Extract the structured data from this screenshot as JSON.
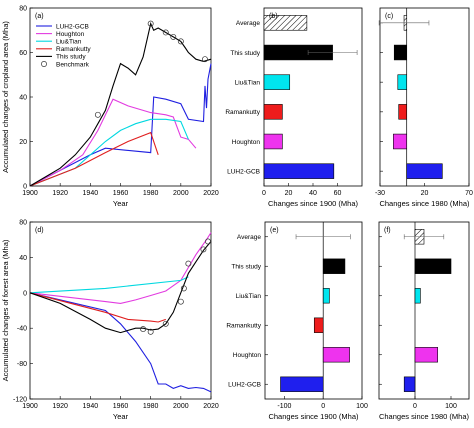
{
  "chart_data": [
    {
      "id": "a",
      "panel_label": "(a)",
      "type": "line",
      "xlabel": "Year",
      "ylabel": "Accumulated changes of cropland area (Mha)",
      "xlim": [
        1900,
        2020
      ],
      "ylim": [
        0,
        80
      ],
      "xticks": [
        1900,
        1920,
        1940,
        1960,
        1980,
        2000,
        2020
      ],
      "yticks": [
        0,
        20,
        40,
        60,
        80
      ],
      "legend_position": "top-left",
      "series": [
        {
          "name": "LUH2-GCB",
          "color": "#1f1fe0",
          "points": [
            [
              1900,
              0
            ],
            [
              1940,
              14
            ],
            [
              1950,
              17
            ],
            [
              1980,
              15
            ],
            [
              1982,
              40
            ],
            [
              1990,
              39
            ],
            [
              2000,
              37
            ],
            [
              2005,
              30
            ],
            [
              2015,
              29
            ],
            [
              2016,
              45
            ],
            [
              2017,
              35
            ],
            [
              2018,
              48
            ],
            [
              2020,
              55
            ]
          ]
        },
        {
          "name": "Houghton",
          "color": "#e23be0",
          "points": [
            [
              1900,
              0
            ],
            [
              1920,
              7
            ],
            [
              1935,
              14
            ],
            [
              1945,
              25
            ],
            [
              1955,
              39
            ],
            [
              1965,
              36
            ],
            [
              1980,
              33
            ],
            [
              1990,
              32
            ],
            [
              1995,
              31
            ],
            [
              2000,
              22
            ],
            [
              2005,
              21
            ],
            [
              2010,
              17
            ]
          ]
        },
        {
          "name": "Liu&Tian",
          "color": "#00d8e0",
          "points": [
            [
              1900,
              0
            ],
            [
              1930,
              8
            ],
            [
              1950,
              20
            ],
            [
              1960,
              25
            ],
            [
              1970,
              28
            ],
            [
              1980,
              30
            ],
            [
              1990,
              30
            ],
            [
              2000,
              29
            ],
            [
              2005,
              21
            ]
          ]
        },
        {
          "name": "Ramankutty",
          "color": "#e01f1f",
          "points": [
            [
              1900,
              0
            ],
            [
              1930,
              8
            ],
            [
              1950,
              15
            ],
            [
              1965,
              20
            ],
            [
              1980,
              24
            ],
            [
              1985,
              14
            ]
          ]
        },
        {
          "name": "This study",
          "color": "#000000",
          "points": [
            [
              1900,
              0
            ],
            [
              1910,
              4
            ],
            [
              1920,
              8
            ],
            [
              1930,
              14
            ],
            [
              1940,
              22
            ],
            [
              1945,
              28
            ],
            [
              1950,
              34
            ],
            [
              1955,
              45
            ],
            [
              1960,
              55
            ],
            [
              1965,
              53
            ],
            [
              1970,
              50
            ],
            [
              1975,
              58
            ],
            [
              1980,
              73
            ],
            [
              1982,
              70
            ],
            [
              1985,
              71
            ],
            [
              1990,
              69
            ],
            [
              1995,
              67
            ],
            [
              2000,
              65
            ],
            [
              2003,
              62
            ],
            [
              2005,
              60
            ],
            [
              2010,
              57
            ],
            [
              2015,
              56
            ],
            [
              2020,
              57
            ]
          ]
        }
      ],
      "benchmark": {
        "name": "Benchmark",
        "points": [
          [
            1945,
            32
          ],
          [
            1980,
            73
          ],
          [
            1990,
            69
          ],
          [
            1995,
            67
          ],
          [
            2000,
            65
          ],
          [
            2016,
            57
          ]
        ]
      }
    },
    {
      "id": "b",
      "panel_label": "(b)",
      "type": "bar",
      "xlabel": "Changes since 1900 (Mha)",
      "xlim": [
        0,
        80
      ],
      "xticks": [
        0,
        20,
        40,
        60
      ],
      "categories": [
        "Average",
        "This study",
        "Liu&Tian",
        "Ramankutty",
        "Houghton",
        "LUH2-GCB"
      ],
      "values": [
        35,
        56,
        21,
        15,
        15,
        57
      ],
      "error": [
        0,
        20,
        0,
        0,
        0,
        0
      ],
      "colors": [
        "hatch",
        "#000000",
        "#00e5ee",
        "#ee1c1c",
        "#ee33ee",
        "#1f1fee"
      ]
    },
    {
      "id": "c",
      "panel_label": "(c)",
      "type": "bar",
      "xlabel": "Changes since 1980 (Mha)",
      "xlim": [
        -30,
        70
      ],
      "xticks": [
        -30,
        20,
        70
      ],
      "categories": [
        "Average",
        "This study",
        "Liu&Tian",
        "Ramankutty",
        "Houghton",
        "LUH2-GCB"
      ],
      "values": [
        -3,
        -14,
        -10,
        -9,
        -15,
        40
      ],
      "error": [
        28,
        0,
        0,
        0,
        0,
        0
      ],
      "colors": [
        "hatch",
        "#000000",
        "#00e5ee",
        "#ee1c1c",
        "#ee33ee",
        "#1f1fee"
      ]
    },
    {
      "id": "d",
      "panel_label": "(d)",
      "type": "line",
      "xlabel": "Year",
      "ylabel": "Accumulated changes of forest area (Mha)",
      "xlim": [
        1900,
        2020
      ],
      "ylim": [
        -120,
        80
      ],
      "xticks": [
        1900,
        1920,
        1940,
        1960,
        1980,
        2000,
        2020
      ],
      "yticks": [
        -120,
        -80,
        -40,
        0,
        40,
        80
      ],
      "series": [
        {
          "name": "LUH2-GCB",
          "color": "#1f1fe0",
          "points": [
            [
              1900,
              0
            ],
            [
              1950,
              -20
            ],
            [
              1960,
              -35
            ],
            [
              1970,
              -55
            ],
            [
              1980,
              -80
            ],
            [
              1985,
              -103
            ],
            [
              1990,
              -103
            ],
            [
              1995,
              -108
            ],
            [
              2000,
              -105
            ],
            [
              2005,
              -108
            ],
            [
              2010,
              -107
            ],
            [
              2015,
              -108
            ],
            [
              2020,
              -112
            ]
          ]
        },
        {
          "name": "Houghton",
          "color": "#e23be0",
          "points": [
            [
              1900,
              0
            ],
            [
              1950,
              -10
            ],
            [
              1960,
              -12
            ],
            [
              1970,
              -8
            ],
            [
              1980,
              -3
            ],
            [
              1990,
              2
            ],
            [
              2000,
              14
            ],
            [
              2010,
              43
            ],
            [
              2017,
              60
            ],
            [
              2020,
              68
            ]
          ]
        },
        {
          "name": "Liu&Tian",
          "color": "#00d8e0",
          "points": [
            [
              1900,
              0
            ],
            [
              1950,
              5
            ],
            [
              2000,
              14
            ],
            [
              2005,
              18
            ]
          ]
        },
        {
          "name": "Ramankutty",
          "color": "#e01f1f",
          "points": [
            [
              1900,
              0
            ],
            [
              1950,
              -22
            ],
            [
              1965,
              -30
            ],
            [
              1980,
              -32
            ],
            [
              1985,
              -33
            ],
            [
              1990,
              -30
            ]
          ]
        },
        {
          "name": "This study",
          "color": "#000000",
          "points": [
            [
              1900,
              0
            ],
            [
              1920,
              -12
            ],
            [
              1940,
              -30
            ],
            [
              1950,
              -40
            ],
            [
              1960,
              -45
            ],
            [
              1970,
              -40
            ],
            [
              1975,
              -40
            ],
            [
              1980,
              -42
            ],
            [
              1985,
              -41
            ],
            [
              1990,
              -35
            ],
            [
              1995,
              -22
            ],
            [
              2000,
              0
            ],
            [
              2005,
              22
            ],
            [
              2010,
              35
            ],
            [
              2015,
              48
            ],
            [
              2020,
              58
            ]
          ]
        }
      ],
      "benchmark": {
        "name": "Benchmark",
        "points": [
          [
            1975,
            -41
          ],
          [
            1980,
            -44
          ],
          [
            1990,
            -35
          ],
          [
            2000,
            -10
          ],
          [
            2002,
            5
          ],
          [
            2005,
            33
          ],
          [
            2015,
            49
          ],
          [
            2018,
            58
          ]
        ]
      }
    },
    {
      "id": "e",
      "panel_label": "(e)",
      "type": "bar",
      "xlabel": "Changes since 1900 (Mha)",
      "xlim": [
        -150,
        100
      ],
      "xticks": [
        -100,
        0,
        100
      ],
      "categories": [
        "Average",
        "This study",
        "Liu&Tian",
        "Ramankutty",
        "Houghton",
        "LUH2-GCB"
      ],
      "values": [
        0,
        56,
        16,
        -23,
        68,
        -110
      ],
      "error": [
        70,
        0,
        0,
        0,
        0,
        0
      ],
      "colors": [
        "hatch",
        "#000000",
        "#00e5ee",
        "#ee1c1c",
        "#ee33ee",
        "#1f1fee"
      ]
    },
    {
      "id": "f",
      "panel_label": "(f)",
      "type": "bar",
      "xlabel": "Changes since 1980 (Mha)",
      "xlim": [
        -100,
        150
      ],
      "xticks": [
        0,
        100
      ],
      "categories": [
        "Average",
        "This study",
        "Liu&Tian",
        "Ramankutty",
        "Houghton",
        "LUH2-GCB"
      ],
      "values": [
        25,
        100,
        15,
        0,
        63,
        -30
      ],
      "error": [
        55,
        0,
        0,
        0,
        0,
        0
      ],
      "colors": [
        "hatch",
        "#000000",
        "#00e5ee",
        "#ee1c1c",
        "#ee33ee",
        "#1f1fee"
      ]
    }
  ]
}
